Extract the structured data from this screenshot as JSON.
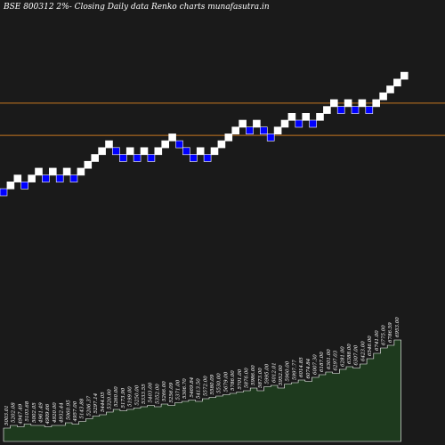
{
  "header": {
    "title": "BSE 800312  2%-  Closing Daily data  Renko  charts munafasutra.in"
  },
  "colors": {
    "background": "#1a1a1a",
    "up_brick": "#ffffff",
    "down_brick": "#0000ff",
    "level_line": "#c87820",
    "volume_fill": "#1e3a1e",
    "volume_stroke": "#ffffff"
  },
  "chart_data": {
    "type": "renko",
    "title": "BSE 800312  2%-  Closing Daily data  Renko  charts munafasutra.in",
    "brick_percent": 2,
    "bricks": [
      {
        "dir": "down",
        "level": 0
      },
      {
        "dir": "up",
        "level": 1
      },
      {
        "dir": "up",
        "level": 2
      },
      {
        "dir": "down",
        "level": 1
      },
      {
        "dir": "up",
        "level": 2
      },
      {
        "dir": "up",
        "level": 3
      },
      {
        "dir": "down",
        "level": 2
      },
      {
        "dir": "up",
        "level": 3
      },
      {
        "dir": "down",
        "level": 2
      },
      {
        "dir": "up",
        "level": 3
      },
      {
        "dir": "down",
        "level": 2
      },
      {
        "dir": "up",
        "level": 3
      },
      {
        "dir": "up",
        "level": 4
      },
      {
        "dir": "up",
        "level": 5
      },
      {
        "dir": "up",
        "level": 6
      },
      {
        "dir": "up",
        "level": 7
      },
      {
        "dir": "down",
        "level": 6
      },
      {
        "dir": "down",
        "level": 5
      },
      {
        "dir": "up",
        "level": 6
      },
      {
        "dir": "down",
        "level": 5
      },
      {
        "dir": "up",
        "level": 6
      },
      {
        "dir": "down",
        "level": 5
      },
      {
        "dir": "up",
        "level": 6
      },
      {
        "dir": "up",
        "level": 7
      },
      {
        "dir": "up",
        "level": 8
      },
      {
        "dir": "down",
        "level": 7
      },
      {
        "dir": "down",
        "level": 6
      },
      {
        "dir": "down",
        "level": 5
      },
      {
        "dir": "up",
        "level": 6
      },
      {
        "dir": "down",
        "level": 5
      },
      {
        "dir": "up",
        "level": 6
      },
      {
        "dir": "up",
        "level": 7
      },
      {
        "dir": "up",
        "level": 8
      },
      {
        "dir": "up",
        "level": 9
      },
      {
        "dir": "up",
        "level": 10
      },
      {
        "dir": "down",
        "level": 9
      },
      {
        "dir": "up",
        "level": 10
      },
      {
        "dir": "down",
        "level": 9
      },
      {
        "dir": "down",
        "level": 8
      },
      {
        "dir": "up",
        "level": 9
      },
      {
        "dir": "up",
        "level": 10
      },
      {
        "dir": "up",
        "level": 11
      },
      {
        "dir": "down",
        "level": 10
      },
      {
        "dir": "up",
        "level": 11
      },
      {
        "dir": "down",
        "level": 10
      },
      {
        "dir": "up",
        "level": 11
      },
      {
        "dir": "up",
        "level": 12
      },
      {
        "dir": "up",
        "level": 13
      },
      {
        "dir": "down",
        "level": 12
      },
      {
        "dir": "up",
        "level": 13
      },
      {
        "dir": "down",
        "level": 12
      },
      {
        "dir": "up",
        "level": 13
      },
      {
        "dir": "down",
        "level": 12
      },
      {
        "dir": "up",
        "level": 13
      },
      {
        "dir": "up",
        "level": 14
      },
      {
        "dir": "up",
        "level": 15
      },
      {
        "dir": "up",
        "level": 16
      },
      {
        "dir": "up",
        "level": 17
      }
    ],
    "level_lines": [
      13,
      8.3
    ],
    "volume_labels": [
      "5003.01",
      "5202.08",
      "4947.49",
      "5103.68",
      "5002.05",
      "4961.49",
      "4909.66",
      "4920.00",
      "4932.44",
      "5060.95",
      "4957.00",
      "5143.88",
      "5206.37",
      "5297.14",
      "5444.05",
      "5320.00",
      "5260.00",
      "5173.90",
      "5199.00",
      "5250.00",
      "5333.55",
      "5403.00",
      "5352.00",
      "5266.00",
      "5256.09",
      "5371.00",
      "5306.70",
      "5469.84",
      "5413.50",
      "5572.00",
      "5580.09",
      "5530.00",
      "5679.00",
      "5786.00",
      "5701.00",
      "5876.00",
      "5986.00",
      "5873.00",
      "5995.00",
      "6012.01",
      "5952.00",
      "5960.00",
      "5997.77",
      "6014.85",
      "6074.84",
      "6007.30",
      "6187.00",
      "6301.00",
      "6297.03",
      "6281.00",
      "6388.00",
      "6307.00",
      "6423.00",
      "6546.00",
      "6741.00",
      "6775.00",
      "6786.59",
      "6953.00"
    ],
    "volume_heights": [
      0.1,
      0.12,
      0.11,
      0.13,
      0.12,
      0.12,
      0.11,
      0.12,
      0.12,
      0.14,
      0.13,
      0.15,
      0.17,
      0.19,
      0.2,
      0.22,
      0.24,
      0.23,
      0.24,
      0.25,
      0.26,
      0.27,
      0.26,
      0.28,
      0.27,
      0.29,
      0.3,
      0.31,
      0.3,
      0.32,
      0.33,
      0.34,
      0.35,
      0.36,
      0.37,
      0.38,
      0.4,
      0.38,
      0.41,
      0.42,
      0.4,
      0.43,
      0.44,
      0.46,
      0.45,
      0.48,
      0.5,
      0.52,
      0.51,
      0.54,
      0.56,
      0.55,
      0.58,
      0.62,
      0.66,
      0.7,
      0.72,
      0.76
    ]
  }
}
